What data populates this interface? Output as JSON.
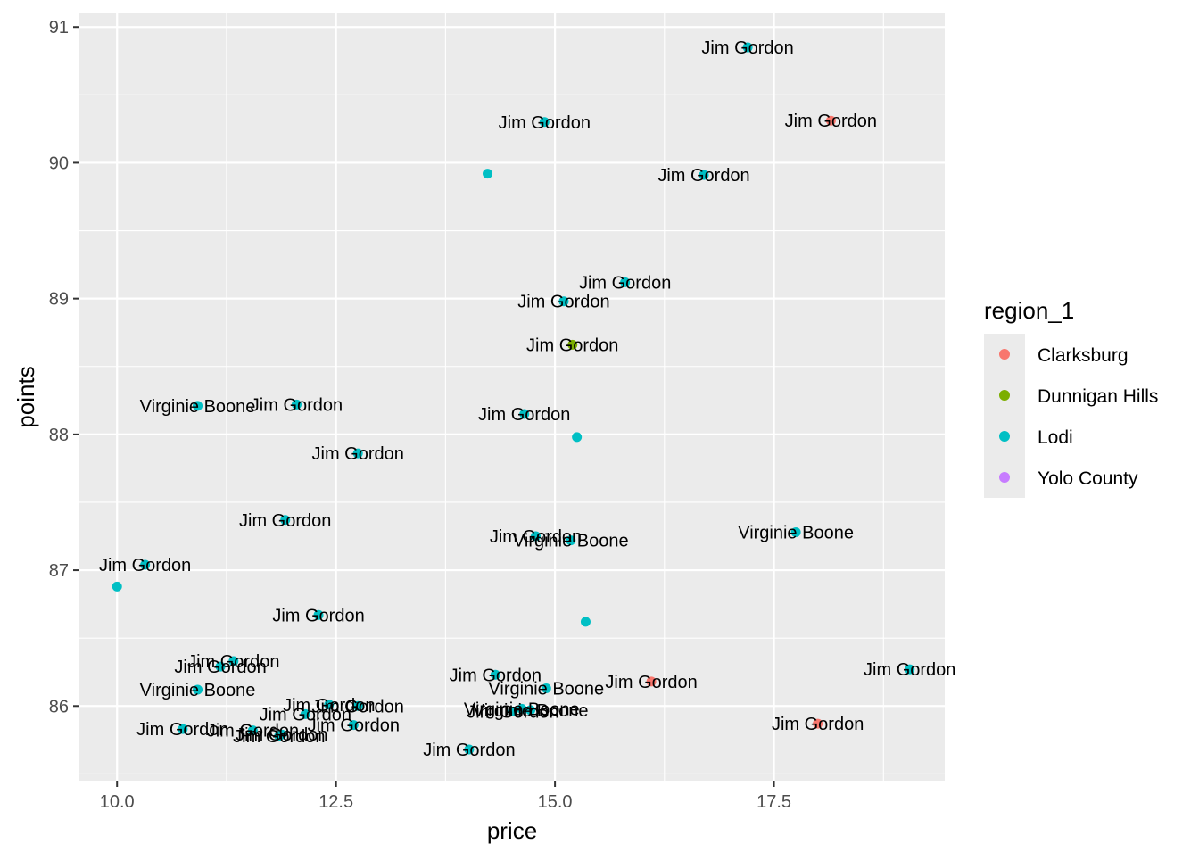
{
  "chart_data": {
    "type": "scatter",
    "xlabel": "price",
    "ylabel": "points",
    "xlim": [
      9.57,
      19.45
    ],
    "ylim": [
      85.45,
      91.1
    ],
    "x_ticks": [
      10.0,
      12.5,
      15.0,
      17.5
    ],
    "x_tick_labels": [
      "10.0",
      "12.5",
      "15.0",
      "17.5"
    ],
    "y_ticks": [
      86,
      87,
      88,
      89,
      90,
      91
    ],
    "y_tick_labels": [
      "86",
      "87",
      "88",
      "89",
      "90",
      "91"
    ],
    "grid": true,
    "panel_background": "#ebebeb",
    "grid_color": "#ffffff",
    "legend": {
      "title": "region_1",
      "position": "right",
      "entries": [
        {
          "label": "Clarksburg",
          "color": "#f8766d"
        },
        {
          "label": "Dunnigan Hills",
          "color": "#7cae00"
        },
        {
          "label": "Lodi",
          "color": "#00bfc4"
        },
        {
          "label": "Yolo County",
          "color": "#c77cff"
        }
      ]
    },
    "points": [
      {
        "x": 17.2,
        "y": 90.85,
        "region": "Lodi",
        "label": "Jim Gordon"
      },
      {
        "x": 14.88,
        "y": 90.3,
        "region": "Lodi",
        "label": "Jim Gordon"
      },
      {
        "x": 18.15,
        "y": 90.31,
        "region": "Clarksburg",
        "label": "Jim Gordon"
      },
      {
        "x": 16.7,
        "y": 89.91,
        "region": "Lodi",
        "label": "Jim Gordon"
      },
      {
        "x": 14.23,
        "y": 89.92,
        "region": "Lodi",
        "label": ""
      },
      {
        "x": 15.8,
        "y": 89.12,
        "region": "Lodi",
        "label": "Jim Gordon"
      },
      {
        "x": 15.1,
        "y": 88.98,
        "region": "Lodi",
        "label": "Jim Gordon"
      },
      {
        "x": 15.2,
        "y": 88.66,
        "region": "Dunnigan Hills",
        "label": "Jim Gordon"
      },
      {
        "x": 10.92,
        "y": 88.21,
        "region": "Lodi",
        "label": "Virginie Boone"
      },
      {
        "x": 12.05,
        "y": 88.22,
        "region": "Lodi",
        "label": "Jim Gordon"
      },
      {
        "x": 14.65,
        "y": 88.15,
        "region": "Lodi",
        "label": "Jim Gordon"
      },
      {
        "x": 15.25,
        "y": 87.98,
        "region": "Lodi",
        "label": ""
      },
      {
        "x": 12.75,
        "y": 87.86,
        "region": "Lodi",
        "label": "Jim Gordon"
      },
      {
        "x": 11.92,
        "y": 87.37,
        "region": "Lodi",
        "label": "Jim Gordon"
      },
      {
        "x": 14.78,
        "y": 87.25,
        "region": "Lodi",
        "label": "Jim Gordon"
      },
      {
        "x": 15.18,
        "y": 87.22,
        "region": "Lodi",
        "label": "Virginie Boone"
      },
      {
        "x": 17.75,
        "y": 87.28,
        "region": "Lodi",
        "label": "Virginie Boone"
      },
      {
        "x": 10.32,
        "y": 87.04,
        "region": "Lodi",
        "label": "Jim Gordon"
      },
      {
        "x": 10.0,
        "y": 86.88,
        "region": "Lodi",
        "label": ""
      },
      {
        "x": 12.3,
        "y": 86.67,
        "region": "Lodi",
        "label": "Jim Gordon"
      },
      {
        "x": 15.35,
        "y": 86.62,
        "region": "Lodi",
        "label": ""
      },
      {
        "x": 11.33,
        "y": 86.33,
        "region": "Lodi",
        "label": "Jim Gordon"
      },
      {
        "x": 11.18,
        "y": 86.29,
        "region": "Lodi",
        "label": "Jim Gordon"
      },
      {
        "x": 14.32,
        "y": 86.23,
        "region": "Lodi",
        "label": "Jim Gordon"
      },
      {
        "x": 16.1,
        "y": 86.18,
        "region": "Clarksburg",
        "label": "Jim Gordon"
      },
      {
        "x": 19.05,
        "y": 86.27,
        "region": "Lodi",
        "label": "Jim Gordon"
      },
      {
        "x": 10.92,
        "y": 86.12,
        "region": "Lodi",
        "label": "Virginie Boone"
      },
      {
        "x": 14.9,
        "y": 86.13,
        "region": "Lodi",
        "label": "Virginie Boone"
      },
      {
        "x": 12.42,
        "y": 86.01,
        "region": "Lodi",
        "label": "Jim Gordon"
      },
      {
        "x": 12.75,
        "y": 86.0,
        "region": "Lodi",
        "label": "Jim Gordon"
      },
      {
        "x": 12.15,
        "y": 85.94,
        "region": "Lodi",
        "label": "Jim Gordon"
      },
      {
        "x": 14.52,
        "y": 85.96,
        "region": "Lodi",
        "label": "Jim Gordon"
      },
      {
        "x": 14.62,
        "y": 85.98,
        "region": "Lodi",
        "label": "Virginie Boone"
      },
      {
        "x": 14.72,
        "y": 85.97,
        "region": "Lodi",
        "label": "Virginie Boone"
      },
      {
        "x": 12.7,
        "y": 85.86,
        "region": "Lodi",
        "label": "Jim Gordon"
      },
      {
        "x": 10.75,
        "y": 85.83,
        "region": "Lodi",
        "label": "Jim Gordon"
      },
      {
        "x": 11.55,
        "y": 85.82,
        "region": "Lodi",
        "label": "Jim Gordon"
      },
      {
        "x": 11.88,
        "y": 85.79,
        "region": "Lodi",
        "label": "Jim Gordon"
      },
      {
        "x": 11.85,
        "y": 85.78,
        "region": "Lodi",
        "label": "Jim Gordon"
      },
      {
        "x": 18.0,
        "y": 85.87,
        "region": "Clarksburg",
        "label": "Jim Gordon"
      },
      {
        "x": 14.02,
        "y": 85.68,
        "region": "Lodi",
        "label": "Jim Gordon"
      }
    ]
  }
}
